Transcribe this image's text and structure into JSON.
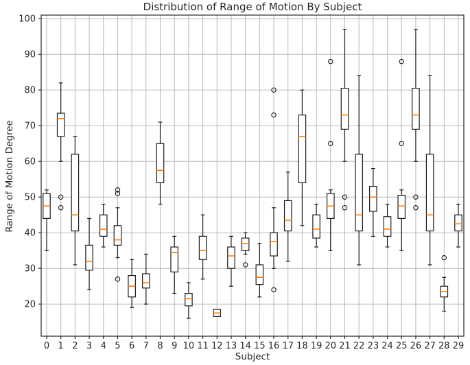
{
  "chart_data": {
    "type": "box",
    "title": "Distribution of Range of Motion By Subject",
    "xlabel": "Subject",
    "ylabel": "Range of Motion Degree",
    "categories": [
      "0",
      "1",
      "2",
      "3",
      "4",
      "5",
      "6",
      "7",
      "8",
      "9",
      "10",
      "11",
      "12",
      "13",
      "14",
      "15",
      "16",
      "17",
      "18",
      "19",
      "20",
      "21",
      "22",
      "23",
      "24",
      "25",
      "26",
      "27",
      "28",
      "29"
    ],
    "ylim": [
      11,
      101
    ],
    "yticks": [
      20,
      30,
      40,
      50,
      60,
      70,
      80,
      90,
      100
    ],
    "grid": true,
    "legend": "none",
    "colors": {
      "median": "#ff7f0e",
      "box_edge": "#1a1a1a",
      "whisker": "#1a1a1a",
      "flier_edge": "#1a1a1a",
      "grid": "#b8b8b8",
      "spine": "#262626",
      "background": "#ffffff"
    },
    "series": [
      {
        "label": "0",
        "whislo": 35,
        "q1": 44,
        "med": 47.5,
        "q3": 51,
        "whishi": 52,
        "fliers": []
      },
      {
        "label": "1",
        "whislo": 60,
        "q1": 67,
        "med": 72,
        "q3": 73.5,
        "whishi": 82,
        "fliers": [
          50,
          47
        ]
      },
      {
        "label": "2",
        "whislo": 31,
        "q1": 40.5,
        "med": 45,
        "q3": 62,
        "whishi": 67,
        "fliers": []
      },
      {
        "label": "3",
        "whislo": 24,
        "q1": 29.5,
        "med": 32,
        "q3": 36.5,
        "whishi": 44,
        "fliers": []
      },
      {
        "label": "4",
        "whislo": 36,
        "q1": 39,
        "med": 41,
        "q3": 45,
        "whishi": 48,
        "fliers": []
      },
      {
        "label": "5",
        "whislo": 33,
        "q1": 36.5,
        "med": 38,
        "q3": 42,
        "whishi": 47,
        "fliers": [
          52,
          51,
          27
        ]
      },
      {
        "label": "6",
        "whislo": 19,
        "q1": 22,
        "med": 25,
        "q3": 28,
        "whishi": 32.5,
        "fliers": []
      },
      {
        "label": "7",
        "whislo": 20,
        "q1": 24.5,
        "med": 26,
        "q3": 28.5,
        "whishi": 34,
        "fliers": []
      },
      {
        "label": "8",
        "whislo": 48,
        "q1": 54,
        "med": 57.5,
        "q3": 65,
        "whishi": 71,
        "fliers": []
      },
      {
        "label": "9",
        "whislo": 23,
        "q1": 29,
        "med": 34.5,
        "q3": 36,
        "whishi": 39,
        "fliers": []
      },
      {
        "label": "10",
        "whislo": 16,
        "q1": 19.5,
        "med": 21.5,
        "q3": 23,
        "whishi": 26,
        "fliers": []
      },
      {
        "label": "11",
        "whislo": 27,
        "q1": 32.5,
        "med": 35,
        "q3": 39,
        "whishi": 45,
        "fliers": []
      },
      {
        "label": "12",
        "whislo": 16.5,
        "q1": 16.5,
        "med": 17.5,
        "q3": 18.5,
        "whishi": 18.5,
        "fliers": []
      },
      {
        "label": "13",
        "whislo": 25,
        "q1": 30,
        "med": 33.5,
        "q3": 36,
        "whishi": 39,
        "fliers": []
      },
      {
        "label": "14",
        "whislo": 34,
        "q1": 35,
        "med": 37,
        "q3": 38.5,
        "whishi": 40,
        "fliers": [
          31
        ]
      },
      {
        "label": "15",
        "whislo": 22,
        "q1": 25.5,
        "med": 27.5,
        "q3": 31,
        "whishi": 37,
        "fliers": []
      },
      {
        "label": "16",
        "whislo": 30,
        "q1": 33.5,
        "med": 37.5,
        "q3": 40,
        "whishi": 47,
        "fliers": [
          80,
          73,
          24
        ]
      },
      {
        "label": "17",
        "whislo": 32,
        "q1": 40.5,
        "med": 43.5,
        "q3": 49,
        "whishi": 57,
        "fliers": []
      },
      {
        "label": "18",
        "whislo": 42,
        "q1": 54,
        "med": 67,
        "q3": 73,
        "whishi": 80,
        "fliers": []
      },
      {
        "label": "19",
        "whislo": 36,
        "q1": 38.5,
        "med": 41,
        "q3": 45,
        "whishi": 48,
        "fliers": []
      },
      {
        "label": "20",
        "whislo": 35,
        "q1": 44,
        "med": 47.5,
        "q3": 51,
        "whishi": 52,
        "fliers": [
          88,
          65
        ]
      },
      {
        "label": "21",
        "whislo": 60,
        "q1": 69,
        "med": 73,
        "q3": 80.5,
        "whishi": 97,
        "fliers": [
          50,
          47
        ]
      },
      {
        "label": "22",
        "whislo": 31,
        "q1": 40.5,
        "med": 45,
        "q3": 62,
        "whishi": 84,
        "fliers": []
      },
      {
        "label": "23",
        "whislo": 39,
        "q1": 46,
        "med": 50,
        "q3": 53,
        "whishi": 58,
        "fliers": []
      },
      {
        "label": "24",
        "whislo": 36,
        "q1": 39,
        "med": 41,
        "q3": 44.5,
        "whishi": 48,
        "fliers": []
      },
      {
        "label": "25",
        "whislo": 35,
        "q1": 44,
        "med": 47.5,
        "q3": 50.5,
        "whishi": 52,
        "fliers": [
          88,
          65
        ]
      },
      {
        "label": "26",
        "whislo": 60,
        "q1": 69,
        "med": 73,
        "q3": 80.5,
        "whishi": 97,
        "fliers": [
          50,
          47
        ]
      },
      {
        "label": "27",
        "whislo": 31,
        "q1": 40.5,
        "med": 45,
        "q3": 62,
        "whishi": 84,
        "fliers": []
      },
      {
        "label": "28",
        "whislo": 18,
        "q1": 22,
        "med": 23.5,
        "q3": 25,
        "whishi": 27.5,
        "fliers": [
          33
        ]
      },
      {
        "label": "29",
        "whislo": 36,
        "q1": 40.5,
        "med": 42.5,
        "q3": 45,
        "whishi": 48,
        "fliers": []
      }
    ]
  }
}
